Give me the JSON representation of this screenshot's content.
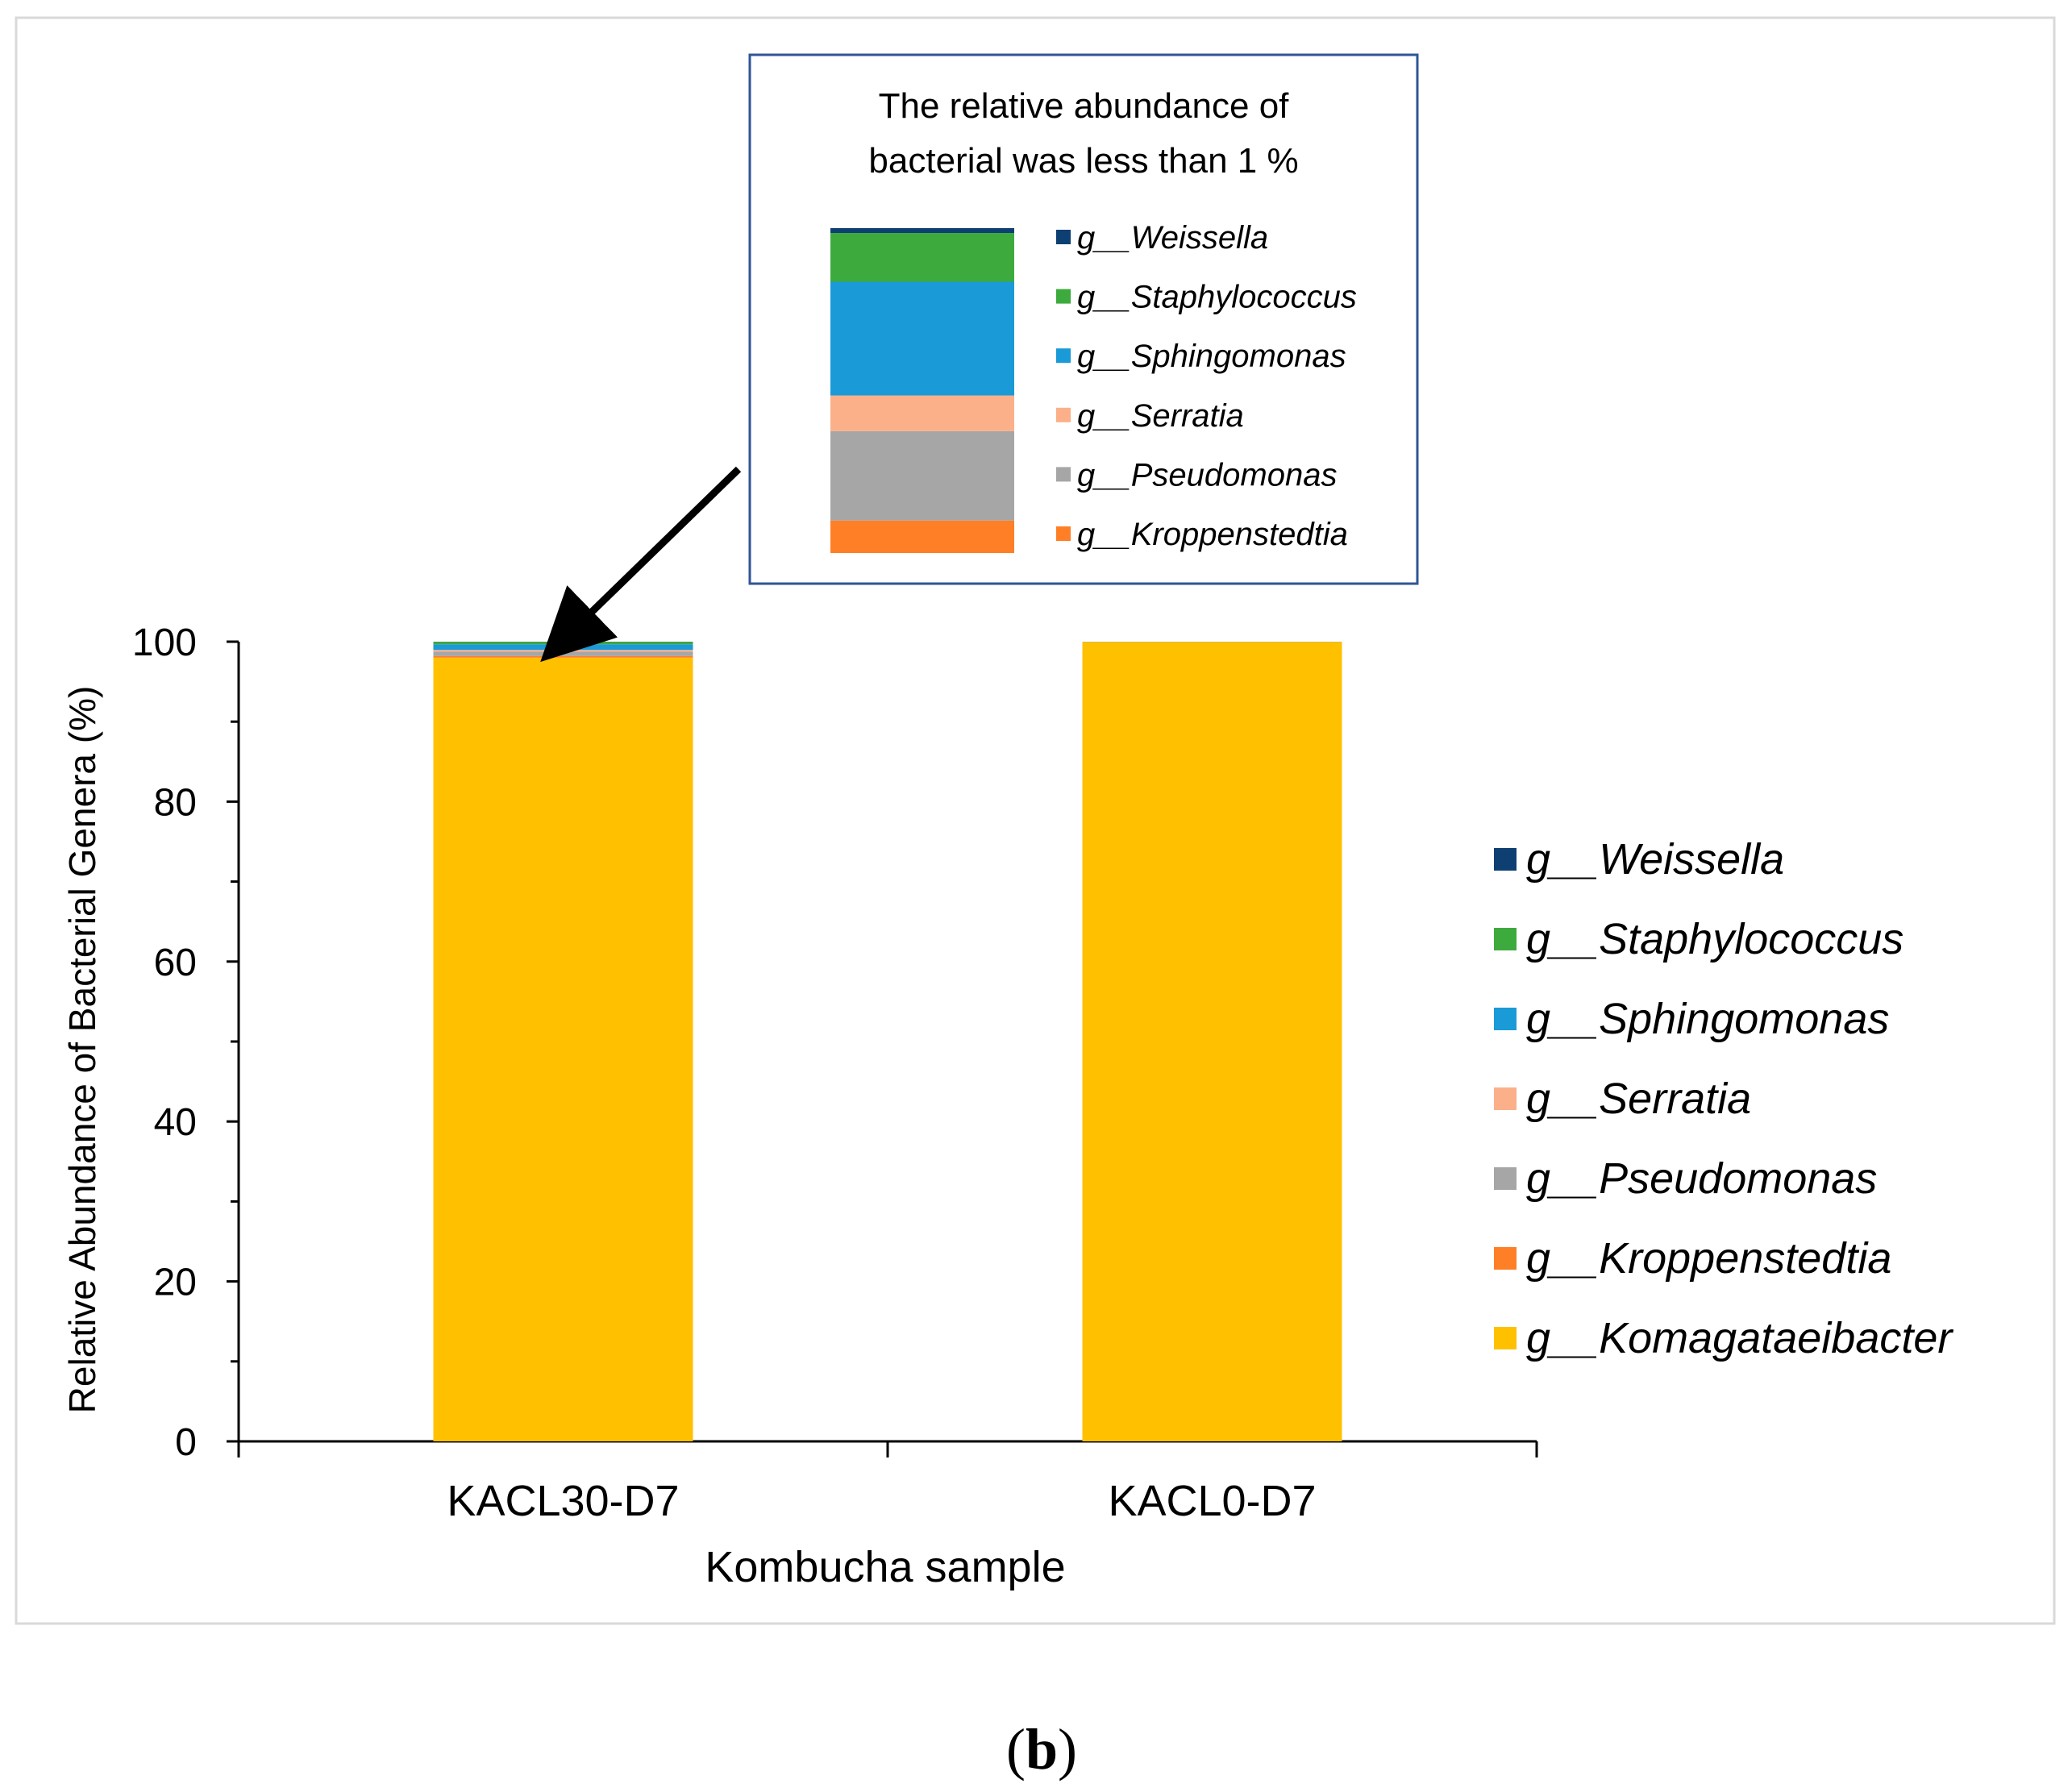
{
  "chart_data": {
    "type": "bar",
    "stacked": true,
    "xlabel": "Kombucha sample",
    "ylabel": "Relative Abundance of Bacterial Genera (%)",
    "ylim": [
      0,
      100
    ],
    "yticks": [
      0,
      20,
      40,
      60,
      80,
      100
    ],
    "categories": [
      "KACL30-D7",
      "KACL0-D7"
    ],
    "series": [
      {
        "name": "g__Komagataeibacter",
        "color": "#FFC000",
        "values": [
          98.0,
          99.96
        ]
      },
      {
        "name": "g__Kroppenstedtia",
        "color": "#FF7F27",
        "values": [
          0.2,
          0.01
        ]
      },
      {
        "name": "g__Pseudomonas",
        "color": "#A6A6A6",
        "values": [
          0.55,
          0.01
        ]
      },
      {
        "name": "g__Serratia",
        "color": "#FBB08A",
        "values": [
          0.22,
          0.0
        ]
      },
      {
        "name": "g__Sphingomonas",
        "color": "#1A9AD6",
        "values": [
          0.7,
          0.01
        ]
      },
      {
        "name": "g__Staphylococcus",
        "color": "#3DAA3D",
        "values": [
          0.3,
          0.01
        ]
      },
      {
        "name": "g__Weissella",
        "color": "#0E3F73",
        "values": [
          0.03,
          0.0
        ]
      }
    ],
    "legend_position": "right",
    "inset": {
      "title_line1": "The relative abundance of",
      "title_line2": "bacterial was less than 1 %",
      "category": "KACL30-D7"
    },
    "panel_label": "(b)",
    "panel_label_letter": "b"
  }
}
